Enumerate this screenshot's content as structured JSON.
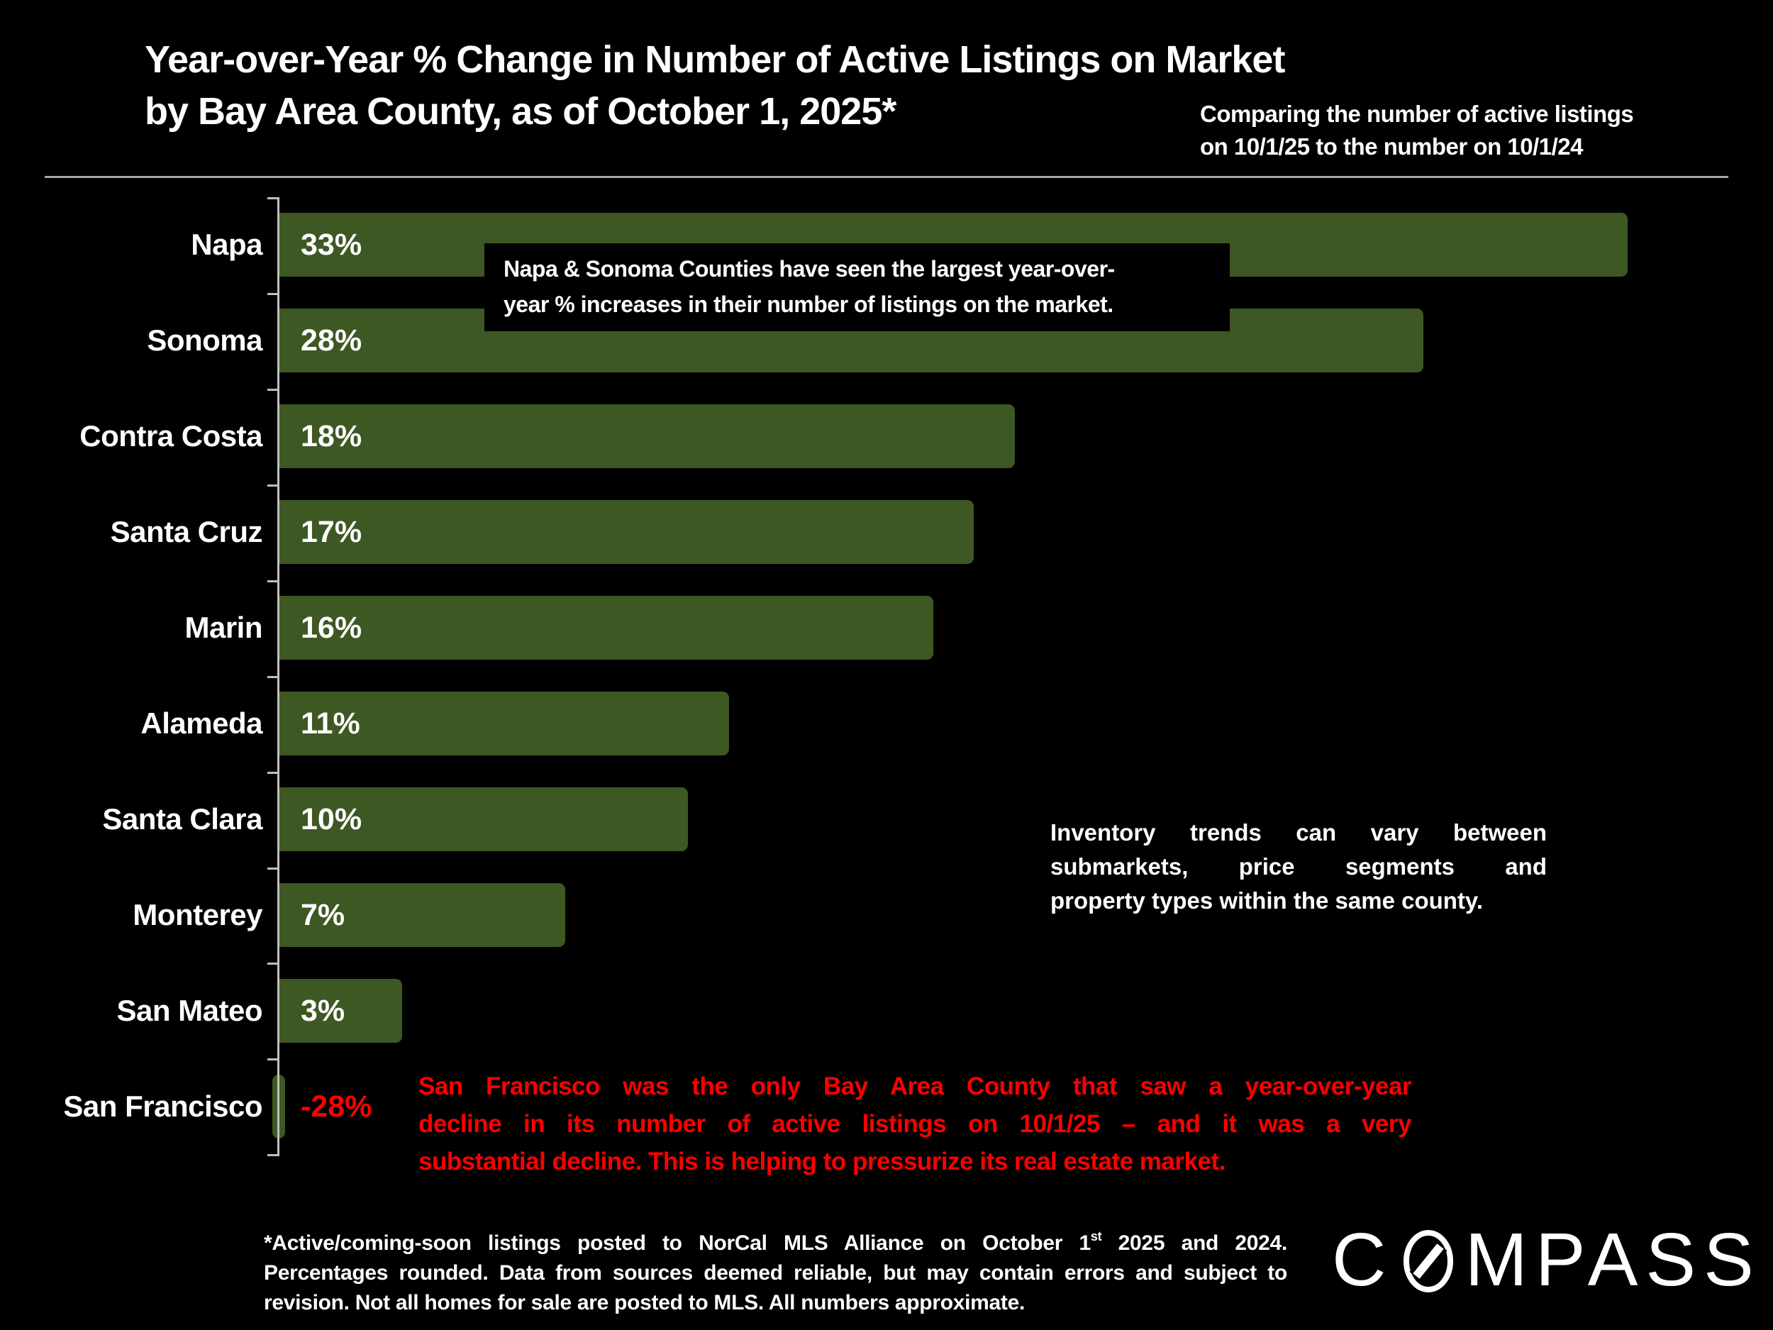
{
  "header": {
    "title_line1": "Year-over-Year % Change in Number of Active Listings on Market",
    "title_line2": "by Bay Area County, as of October 1, 2025*",
    "subtitle_line1": "Comparing the number of active listings",
    "subtitle_line2": "on 10/1/25 to the number on 10/1/24"
  },
  "chart_data": {
    "type": "bar",
    "orientation": "horizontal",
    "title": "Year-over-Year % Change in Number of Active Listings on Market by Bay Area County, as of October 1, 2025*",
    "categories": [
      "Napa",
      "Sonoma",
      "Contra Costa",
      "Santa Cruz",
      "Marin",
      "Alameda",
      "Santa Clara",
      "Monterey",
      "San Mateo",
      "San Francisco"
    ],
    "values": [
      33,
      28,
      18,
      17,
      16,
      11,
      10,
      7,
      3,
      -28
    ],
    "value_labels": [
      "33%",
      "28%",
      "18%",
      "17%",
      "16%",
      "11%",
      "10%",
      "7%",
      "3%",
      "-28%"
    ],
    "xlim": [
      0,
      33
    ],
    "grid": false,
    "legend": false,
    "bar_color": "#3E5823",
    "label_color": "#FFFFFF",
    "negative_label_color": "#FF0000",
    "axis_color": "#BFBFBF",
    "background_color": "#000000",
    "note": "San Francisco bar (-28%) is clipped to a small nub at the axis"
  },
  "annotation_box": {
    "lines": [
      "Napa & Sonoma Counties have seen the largest year-over-",
      "year % increases in their number of listings on the market."
    ]
  },
  "inventory_note": {
    "lines": [
      "Inventory trends can vary between",
      "submarkets, price segments and",
      "property types within the same county."
    ]
  },
  "sf_note": {
    "color": "#FF0000",
    "lines": [
      "San Francisco was the only Bay Area County that saw a year-over-year",
      "decline in its number of active listings on 10/1/25 – and it was a very",
      "substantial decline. This is helping to pressurize its real estate market."
    ]
  },
  "footnote": {
    "line1_pre": "*Active/coming-soon listings posted to NorCal MLS Alliance on October 1",
    "line1_sup": "st",
    "line1_post": " 2025 and 2024.",
    "line2": "Percentages rounded. Data from sources deemed reliable, but may contain errors and subject to",
    "line3": "revision. Not all homes for sale are posted to MLS. All numbers approximate."
  },
  "logo": {
    "text": "COMPASS",
    "pre": "C",
    "post": "MPASS"
  }
}
